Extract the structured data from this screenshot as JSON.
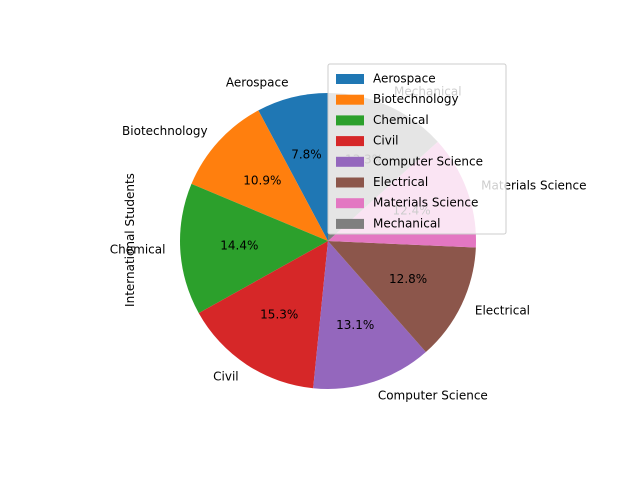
{
  "chart_data": {
    "type": "pie",
    "ylabel": "International Students",
    "categories": [
      "Aerospace",
      "Biotechnology",
      "Chemical",
      "Civil",
      "Computer Science",
      "Electrical",
      "Materials Science",
      "Mechanical"
    ],
    "values": [
      7.8,
      10.9,
      14.4,
      15.3,
      13.1,
      12.8,
      12.4,
      13.3
    ],
    "percent_labels": [
      "7.8%",
      "10.9%",
      "14.4%",
      "15.3%",
      "13.1%",
      "12.8%",
      "12.4%",
      "13.3%"
    ],
    "colors": [
      "#1f77b4",
      "#ff7f0e",
      "#2ca02c",
      "#d62728",
      "#9467bd",
      "#8c564b",
      "#e377c2",
      "#7f7f7f"
    ],
    "legend_position": "upper-right",
    "start_angle_deg": 90,
    "direction": "counterclockwise"
  }
}
